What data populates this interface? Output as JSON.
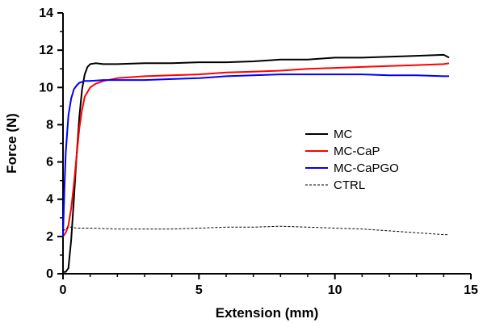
{
  "chart_data": {
    "type": "line",
    "title": "",
    "xlabel": "Extension (mm)",
    "ylabel": "Force (N)",
    "xlim": [
      0,
      15
    ],
    "ylim": [
      0,
      14
    ],
    "x_ticks": [
      0,
      5,
      10,
      15
    ],
    "y_ticks": [
      0,
      2,
      4,
      6,
      8,
      10,
      12,
      14
    ],
    "grid": false,
    "legend_position": "center-right",
    "series": [
      {
        "name": "MC",
        "color": "#000000",
        "dash": "solid",
        "x": [
          0.0,
          0.1,
          0.2,
          0.3,
          0.4,
          0.5,
          0.6,
          0.7,
          0.8,
          0.9,
          1.0,
          1.2,
          1.5,
          2,
          3,
          4,
          5,
          6,
          7,
          8,
          9,
          10,
          11,
          12,
          13,
          14,
          14.2
        ],
        "y": [
          0.1,
          0.1,
          0.3,
          1.8,
          4.0,
          6.3,
          8.4,
          9.9,
          10.7,
          11.1,
          11.25,
          11.3,
          11.25,
          11.25,
          11.3,
          11.3,
          11.35,
          11.35,
          11.4,
          11.5,
          11.5,
          11.6,
          11.6,
          11.65,
          11.7,
          11.75,
          11.6
        ]
      },
      {
        "name": "MC-CaP",
        "color": "#ff0000",
        "dash": "solid",
        "x": [
          0.0,
          0.1,
          0.2,
          0.3,
          0.4,
          0.5,
          0.6,
          0.7,
          0.8,
          1.0,
          1.2,
          1.5,
          2,
          3,
          4,
          5,
          6,
          7,
          8,
          9,
          10,
          11,
          12,
          13,
          14,
          14.2
        ],
        "y": [
          2.0,
          2.2,
          2.6,
          3.5,
          4.8,
          6.3,
          7.8,
          8.8,
          9.5,
          10.0,
          10.2,
          10.35,
          10.5,
          10.6,
          10.65,
          10.7,
          10.8,
          10.85,
          10.9,
          11.0,
          11.05,
          11.1,
          11.15,
          11.2,
          11.25,
          11.3
        ]
      },
      {
        "name": "MC-CaPGO",
        "color": "#0000ff",
        "dash": "solid",
        "x": [
          0.0,
          0.05,
          0.1,
          0.2,
          0.3,
          0.4,
          0.5,
          0.6,
          0.7,
          0.8,
          1.0,
          1.5,
          2,
          3,
          4,
          5,
          6,
          7,
          8,
          9,
          10,
          11,
          12,
          13,
          14,
          14.2
        ],
        "y": [
          2.0,
          4.5,
          6.5,
          8.5,
          9.4,
          9.9,
          10.1,
          10.25,
          10.3,
          10.35,
          10.35,
          10.4,
          10.4,
          10.4,
          10.45,
          10.5,
          10.6,
          10.65,
          10.7,
          10.7,
          10.7,
          10.7,
          10.65,
          10.65,
          10.6,
          10.6
        ]
      },
      {
        "name": "CTRL",
        "color": "#000000",
        "dash": "dashed",
        "x": [
          0.0,
          0.1,
          0.2,
          0.3,
          0.5,
          1,
          2,
          3,
          4,
          5,
          6,
          7,
          8,
          9,
          10,
          11,
          12,
          13,
          14,
          14.2
        ],
        "y": [
          2.3,
          2.4,
          2.5,
          2.5,
          2.45,
          2.45,
          2.4,
          2.4,
          2.4,
          2.45,
          2.5,
          2.5,
          2.55,
          2.5,
          2.45,
          2.4,
          2.3,
          2.2,
          2.1,
          2.1
        ]
      }
    ]
  }
}
